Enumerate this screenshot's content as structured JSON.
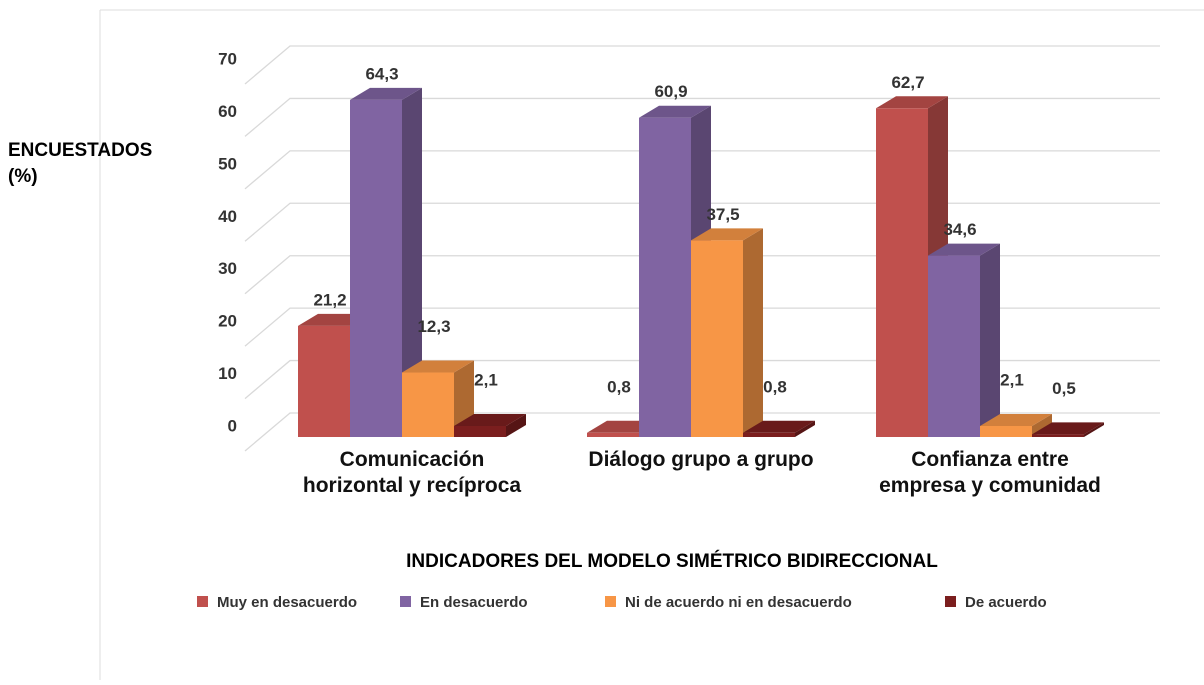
{
  "chart_data": {
    "type": "bar3d",
    "y_label": "ENCUESTADOS (%)",
    "x_label": "INDICADORES DEL MODELO SIMÉTRICO BIDIRECCIONAL",
    "categories": [
      "Comunicación horizontal y recíproca",
      "Diálogo grupo a grupo",
      "Confianza entre empresa y comunidad"
    ],
    "series": [
      {
        "name": "Muy en desacuerdo",
        "color": "#c0504d",
        "values": [
          21.2,
          0.8,
          62.7
        ],
        "value_labels": [
          "21,2",
          "0,8",
          "62,7"
        ]
      },
      {
        "name": "En desacuerdo",
        "color": "#8064a2",
        "values": [
          64.3,
          60.9,
          34.6
        ],
        "value_labels": [
          "64,3",
          "60,9",
          "34,6"
        ]
      },
      {
        "name": "Ni de acuerdo ni en desacuerdo",
        "color": "#f79646",
        "values": [
          12.3,
          37.5,
          2.1
        ],
        "value_labels": [
          "12,3",
          "37,5",
          "2,1"
        ]
      },
      {
        "name": "De acuerdo",
        "color": "#7b1e1e",
        "values": [
          2.1,
          0.8,
          0.5
        ],
        "value_labels": [
          "2,1",
          "0,8",
          "0,5"
        ]
      }
    ],
    "ylim": [
      0,
      70
    ],
    "yticks": [
      0,
      10,
      20,
      30,
      40,
      50,
      60,
      70
    ],
    "grid": true,
    "legend": "bottom"
  }
}
